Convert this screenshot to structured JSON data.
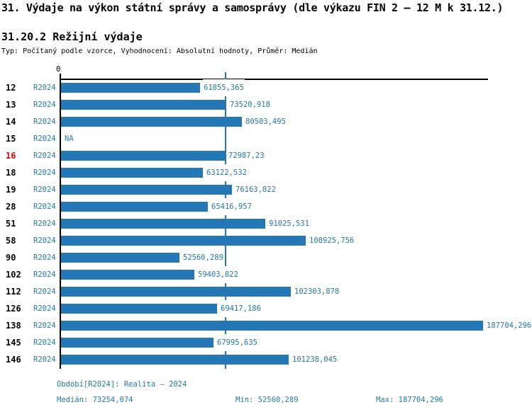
{
  "page": {
    "title": "31. Výdaje na výkon státní správy a samosprávy (dle výkazu FIN 2 – 12 M k 31.12.)",
    "subtitle": "31.20.2 Režijní výdaje",
    "meta": "Typ: Počítaný podle vzorce, Vyhodnocení: Absolutní hodnoty, Průměr: Medián"
  },
  "chart_data": {
    "type": "bar",
    "orientation": "horizontal",
    "title": "31.20.2 Režijní výdaje",
    "categories": [
      "12",
      "13",
      "14",
      "15",
      "16",
      "18",
      "19",
      "28",
      "51",
      "58",
      "90",
      "102",
      "112",
      "126",
      "138",
      "145",
      "146"
    ],
    "series": [
      {
        "name": "R2024",
        "values": [
          61855.365,
          73520.918,
          80503.495,
          null,
          72987.23,
          63122.532,
          76163.822,
          65416.957,
          91025.531,
          108925.756,
          52560.289,
          59403.822,
          102303.878,
          69417.186,
          187704.296,
          67995.635,
          101238.045
        ]
      }
    ],
    "value_labels": [
      "61855,365",
      "73520,918",
      "80503,495",
      "NA",
      "72987,23",
      "63122,532",
      "76163,822",
      "65416,957",
      "91025,531",
      "108925,756",
      "52560,289",
      "59403,822",
      "102303,878",
      "69417,186",
      "187704,296",
      "67995,635",
      "101238,045"
    ],
    "highlighted_category": "16",
    "axis": {
      "zero_label": "0",
      "min": 0,
      "max": 190000,
      "median": 73254.074
    },
    "median_line": true,
    "grid": false,
    "legend": false,
    "colors": {
      "bar": "#2578b5",
      "median": "#2578b5",
      "highlight": "#e40000"
    }
  },
  "footer": {
    "period_line": "Období[R2024]: Realita – 2024",
    "median_label": "Medián:",
    "median_value": "73254,074",
    "min_label": "Min:",
    "min_value": "52560,289",
    "max_label": "Max:",
    "max_value": "187704,296"
  }
}
